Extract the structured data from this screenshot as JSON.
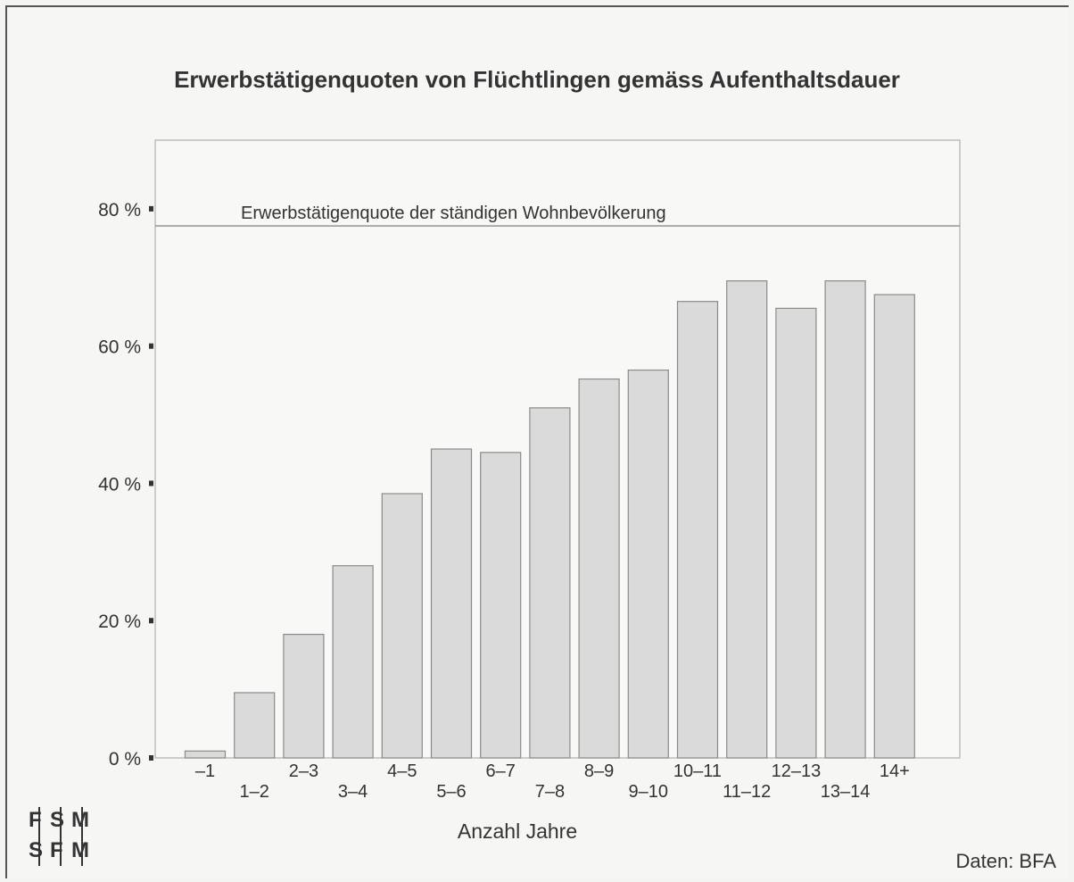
{
  "chart_data": {
    "type": "bar",
    "title": "Erwerbstätigenquoten von Flüchtlingen gemäss Aufenthaltsdauer",
    "xlabel": "Anzahl Jahre",
    "ylabel": "",
    "categories": [
      "–1",
      "1–2",
      "2–3",
      "3–4",
      "4–5",
      "5–6",
      "6–7",
      "7–8",
      "8–9",
      "9–10",
      "10–11",
      "11–12",
      "12–13",
      "13–14",
      "14+"
    ],
    "values": [
      1,
      9.5,
      18,
      28,
      38.5,
      45,
      44.5,
      51,
      55.2,
      56.5,
      66.5,
      69.5,
      65.5,
      69.5,
      67.5
    ],
    "ylim": [
      0,
      90
    ],
    "yticks": [
      0,
      20,
      40,
      60,
      80
    ],
    "ytick_labels": [
      "0 %",
      "20 %",
      "40 %",
      "60 %",
      "80 %"
    ],
    "reference_line": {
      "value": 77.5,
      "label": "Erwerbstätigenquote der ständigen Wohnbevölkerung"
    },
    "grid": false,
    "bar_color": "#dadada",
    "bar_outline": "#8a8a8a"
  },
  "source_note": "Daten: BFA",
  "logo_letters": [
    "F",
    "S",
    "M",
    "S",
    "F",
    "M"
  ]
}
